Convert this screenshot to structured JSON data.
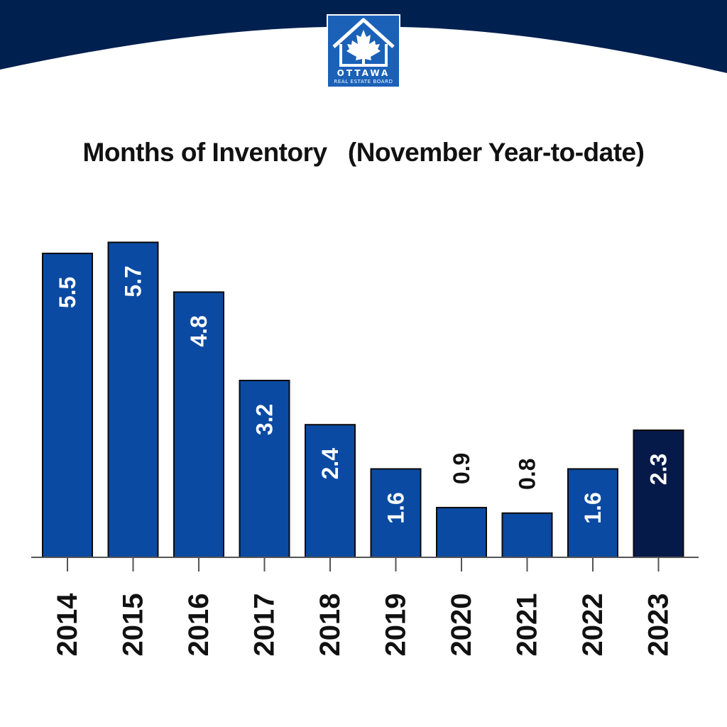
{
  "logo": {
    "line1": "OTTAWA",
    "line2": "REAL ESTATE BOARD",
    "icon": "house-maple-leaf-icon"
  },
  "colors": {
    "banner": "#00204f",
    "bar": "#0b4aa2",
    "bar_highlight": "#061a4a",
    "logo_bg": "#1b61b8"
  },
  "chart_data": {
    "type": "bar",
    "title": "Months of Inventory   (November Year-to-date)",
    "categories": [
      "2014",
      "2015",
      "2016",
      "2017",
      "2018",
      "2019",
      "2020",
      "2021",
      "2022",
      "2023"
    ],
    "values": [
      5.5,
      5.7,
      4.8,
      3.2,
      2.4,
      1.6,
      0.9,
      0.8,
      1.6,
      2.3
    ],
    "highlight": "2023",
    "ylim": [
      0,
      6
    ],
    "grid": false,
    "data_labels": "rotated-inside"
  }
}
